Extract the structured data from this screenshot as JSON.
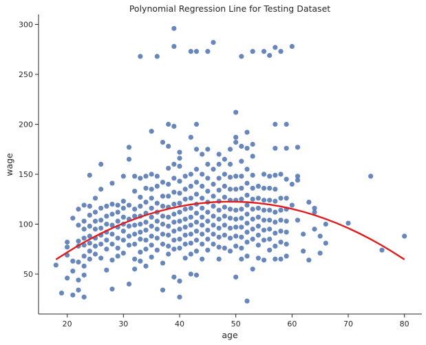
{
  "chart_data": {
    "type": "scatter",
    "title": "Polynomial Regression Line for Testing Dataset",
    "xlabel": "age",
    "ylabel": "wage",
    "xlim": [
      14.9,
      83.1
    ],
    "ylim": [
      10,
      310
    ],
    "xticks": [
      20,
      30,
      40,
      50,
      60,
      70,
      80
    ],
    "yticks": [
      50,
      100,
      150,
      200,
      250,
      300
    ],
    "grid": false,
    "point_color": "#4c72b0",
    "line_color": "#e31a1c",
    "points": [
      [
        18,
        59
      ],
      [
        19,
        31
      ],
      [
        20,
        77
      ],
      [
        20,
        82
      ],
      [
        20,
        69
      ],
      [
        20,
        46
      ],
      [
        21,
        106
      ],
      [
        21,
        63
      ],
      [
        21,
        53
      ],
      [
        21,
        29
      ],
      [
        22,
        115
      ],
      [
        22,
        99
      ],
      [
        22,
        83
      ],
      [
        22,
        78
      ],
      [
        22,
        62
      ],
      [
        22,
        44
      ],
      [
        22,
        34
      ],
      [
        23,
        119
      ],
      [
        23,
        103
      ],
      [
        23,
        95
      ],
      [
        23,
        86
      ],
      [
        23,
        79
      ],
      [
        23,
        68
      ],
      [
        23,
        58
      ],
      [
        23,
        49
      ],
      [
        23,
        27
      ],
      [
        24,
        149
      ],
      [
        24,
        118
      ],
      [
        24,
        109
      ],
      [
        24,
        98
      ],
      [
        24,
        88
      ],
      [
        24,
        81
      ],
      [
        24,
        73
      ],
      [
        24,
        65
      ],
      [
        25,
        126
      ],
      [
        25,
        112
      ],
      [
        25,
        103
      ],
      [
        25,
        95
      ],
      [
        25,
        86
      ],
      [
        25,
        78
      ],
      [
        25,
        70
      ],
      [
        26,
        160
      ],
      [
        26,
        135
      ],
      [
        26,
        116
      ],
      [
        26,
        104
      ],
      [
        26,
        96
      ],
      [
        26,
        89
      ],
      [
        26,
        80
      ],
      [
        26,
        66
      ],
      [
        27,
        118
      ],
      [
        27,
        108
      ],
      [
        27,
        100
      ],
      [
        27,
        92
      ],
      [
        27,
        84
      ],
      [
        27,
        75
      ],
      [
        27,
        54
      ],
      [
        28,
        141
      ],
      [
        28,
        120
      ],
      [
        28,
        110
      ],
      [
        28,
        99
      ],
      [
        28,
        90
      ],
      [
        28,
        80
      ],
      [
        28,
        64
      ],
      [
        28,
        35
      ],
      [
        29,
        119
      ],
      [
        29,
        112
      ],
      [
        29,
        103
      ],
      [
        29,
        97
      ],
      [
        29,
        86
      ],
      [
        29,
        76
      ],
      [
        29,
        68
      ],
      [
        30,
        148
      ],
      [
        30,
        123
      ],
      [
        30,
        116
      ],
      [
        30,
        107
      ],
      [
        30,
        100
      ],
      [
        30,
        93
      ],
      [
        30,
        84
      ],
      [
        30,
        71
      ],
      [
        31,
        177
      ],
      [
        31,
        165
      ],
      [
        31,
        119
      ],
      [
        31,
        105
      ],
      [
        31,
        98
      ],
      [
        31,
        88
      ],
      [
        31,
        79
      ],
      [
        31,
        40
      ],
      [
        32,
        148
      ],
      [
        32,
        133
      ],
      [
        32,
        115
      ],
      [
        32,
        108
      ],
      [
        32,
        99
      ],
      [
        32,
        90
      ],
      [
        32,
        80
      ],
      [
        32,
        65
      ],
      [
        32,
        55
      ],
      [
        33,
        268
      ],
      [
        33,
        146
      ],
      [
        33,
        127
      ],
      [
        33,
        118
      ],
      [
        33,
        108
      ],
      [
        33,
        100
      ],
      [
        33,
        92
      ],
      [
        33,
        85
      ],
      [
        33,
        72
      ],
      [
        33,
        63
      ],
      [
        34,
        148
      ],
      [
        34,
        136
      ],
      [
        34,
        122
      ],
      [
        34,
        111
      ],
      [
        34,
        102
      ],
      [
        34,
        94
      ],
      [
        34,
        84
      ],
      [
        34,
        75
      ],
      [
        34,
        58
      ],
      [
        35,
        193
      ],
      [
        35,
        150
      ],
      [
        35,
        135
      ],
      [
        35,
        126
      ],
      [
        35,
        116
      ],
      [
        35,
        107
      ],
      [
        35,
        98
      ],
      [
        35,
        88
      ],
      [
        35,
        79
      ],
      [
        35,
        67
      ],
      [
        36,
        268
      ],
      [
        36,
        148
      ],
      [
        36,
        138
      ],
      [
        36,
        121
      ],
      [
        36,
        112
      ],
      [
        36,
        103
      ],
      [
        36,
        95
      ],
      [
        36,
        86
      ],
      [
        36,
        74
      ],
      [
        37,
        182
      ],
      [
        37,
        142
      ],
      [
        37,
        128
      ],
      [
        37,
        118
      ],
      [
        37,
        108
      ],
      [
        37,
        100
      ],
      [
        37,
        90
      ],
      [
        37,
        80
      ],
      [
        37,
        61
      ],
      [
        37,
        34
      ],
      [
        38,
        200
      ],
      [
        38,
        178
      ],
      [
        38,
        156
      ],
      [
        38,
        140
      ],
      [
        38,
        128
      ],
      [
        38,
        117
      ],
      [
        38,
        107
      ],
      [
        38,
        98
      ],
      [
        38,
        89
      ],
      [
        38,
        78
      ],
      [
        38,
        70
      ],
      [
        39,
        296
      ],
      [
        39,
        278
      ],
      [
        39,
        198
      ],
      [
        39,
        160
      ],
      [
        39,
        146
      ],
      [
        39,
        132
      ],
      [
        39,
        120
      ],
      [
        39,
        110
      ],
      [
        39,
        102
      ],
      [
        39,
        93
      ],
      [
        39,
        84
      ],
      [
        39,
        75
      ],
      [
        39,
        47
      ],
      [
        40,
        172
      ],
      [
        40,
        166
      ],
      [
        40,
        158
      ],
      [
        40,
        143
      ],
      [
        40,
        131
      ],
      [
        40,
        121
      ],
      [
        40,
        112
      ],
      [
        40,
        103
      ],
      [
        40,
        95
      ],
      [
        40,
        85
      ],
      [
        40,
        76
      ],
      [
        40,
        43
      ],
      [
        40,
        27
      ],
      [
        41,
        148
      ],
      [
        41,
        135
      ],
      [
        41,
        125
      ],
      [
        41,
        115
      ],
      [
        41,
        105
      ],
      [
        41,
        97
      ],
      [
        41,
        89
      ],
      [
        41,
        80
      ],
      [
        41,
        66
      ],
      [
        42,
        273
      ],
      [
        42,
        187
      ],
      [
        42,
        150
      ],
      [
        42,
        138
      ],
      [
        42,
        126
      ],
      [
        42,
        116
      ],
      [
        42,
        107
      ],
      [
        42,
        99
      ],
      [
        42,
        90
      ],
      [
        42,
        81
      ],
      [
        42,
        70
      ],
      [
        42,
        50
      ],
      [
        43,
        273
      ],
      [
        43,
        200
      ],
      [
        43,
        175
      ],
      [
        43,
        155
      ],
      [
        43,
        142
      ],
      [
        43,
        130
      ],
      [
        43,
        120
      ],
      [
        43,
        111
      ],
      [
        43,
        102
      ],
      [
        43,
        93
      ],
      [
        43,
        84
      ],
      [
        43,
        73
      ],
      [
        43,
        49
      ],
      [
        44,
        170
      ],
      [
        44,
        150
      ],
      [
        44,
        138
      ],
      [
        44,
        126
      ],
      [
        44,
        116
      ],
      [
        44,
        107
      ],
      [
        44,
        99
      ],
      [
        44,
        90
      ],
      [
        44,
        80
      ],
      [
        44,
        65
      ],
      [
        45,
        273
      ],
      [
        45,
        175
      ],
      [
        45,
        160
      ],
      [
        45,
        146
      ],
      [
        45,
        133
      ],
      [
        45,
        122
      ],
      [
        45,
        112
      ],
      [
        45,
        103
      ],
      [
        45,
        94
      ],
      [
        45,
        85
      ],
      [
        45,
        74
      ],
      [
        46,
        282
      ],
      [
        46,
        155
      ],
      [
        46,
        140
      ],
      [
        46,
        128
      ],
      [
        46,
        118
      ],
      [
        46,
        108
      ],
      [
        46,
        99
      ],
      [
        46,
        90
      ],
      [
        46,
        80
      ],
      [
        47,
        170
      ],
      [
        47,
        160
      ],
      [
        47,
        146
      ],
      [
        47,
        134
      ],
      [
        47,
        123
      ],
      [
        47,
        114
      ],
      [
        47,
        105
      ],
      [
        47,
        96
      ],
      [
        47,
        87
      ],
      [
        47,
        77
      ],
      [
        47,
        65
      ],
      [
        48,
        165
      ],
      [
        48,
        150
      ],
      [
        48,
        138
      ],
      [
        48,
        127
      ],
      [
        48,
        117
      ],
      [
        48,
        108
      ],
      [
        48,
        99
      ],
      [
        48,
        89
      ],
      [
        48,
        76
      ],
      [
        49,
        175
      ],
      [
        49,
        160
      ],
      [
        49,
        147
      ],
      [
        49,
        135
      ],
      [
        49,
        124
      ],
      [
        49,
        115
      ],
      [
        49,
        106
      ],
      [
        49,
        96
      ],
      [
        49,
        86
      ],
      [
        49,
        73
      ],
      [
        50,
        212
      ],
      [
        50,
        187
      ],
      [
        50,
        182
      ],
      [
        50,
        148
      ],
      [
        50,
        135
      ],
      [
        50,
        124
      ],
      [
        50,
        114
      ],
      [
        50,
        105
      ],
      [
        50,
        97
      ],
      [
        50,
        88
      ],
      [
        50,
        78
      ],
      [
        50,
        47
      ],
      [
        51,
        268
      ],
      [
        51,
        178
      ],
      [
        51,
        163
      ],
      [
        51,
        148
      ],
      [
        51,
        136
      ],
      [
        51,
        125
      ],
      [
        51,
        115
      ],
      [
        51,
        106
      ],
      [
        51,
        97
      ],
      [
        51,
        87
      ],
      [
        51,
        76
      ],
      [
        51,
        65
      ],
      [
        52,
        192
      ],
      [
        52,
        176
      ],
      [
        52,
        155
      ],
      [
        52,
        141
      ],
      [
        52,
        129
      ],
      [
        52,
        119
      ],
      [
        52,
        110
      ],
      [
        52,
        101
      ],
      [
        52,
        92
      ],
      [
        52,
        82
      ],
      [
        52,
        68
      ],
      [
        52,
        23
      ],
      [
        53,
        273
      ],
      [
        53,
        180
      ],
      [
        53,
        168
      ],
      [
        53,
        149
      ],
      [
        53,
        136
      ],
      [
        53,
        125
      ],
      [
        53,
        115
      ],
      [
        53,
        105
      ],
      [
        53,
        95
      ],
      [
        53,
        85
      ],
      [
        53,
        55
      ],
      [
        54,
        138
      ],
      [
        54,
        126
      ],
      [
        54,
        116
      ],
      [
        54,
        107
      ],
      [
        54,
        98
      ],
      [
        54,
        89
      ],
      [
        54,
        79
      ],
      [
        54,
        66
      ],
      [
        55,
        273
      ],
      [
        55,
        150
      ],
      [
        55,
        136
      ],
      [
        55,
        124
      ],
      [
        55,
        114
      ],
      [
        55,
        104
      ],
      [
        55,
        94
      ],
      [
        55,
        84
      ],
      [
        55,
        64
      ],
      [
        56,
        269
      ],
      [
        56,
        148
      ],
      [
        56,
        136
      ],
      [
        56,
        124
      ],
      [
        56,
        114
      ],
      [
        56,
        104
      ],
      [
        56,
        95
      ],
      [
        56,
        85
      ],
      [
        56,
        74
      ],
      [
        57,
        277
      ],
      [
        57,
        200
      ],
      [
        57,
        176
      ],
      [
        57,
        149
      ],
      [
        57,
        135
      ],
      [
        57,
        123
      ],
      [
        57,
        112
      ],
      [
        57,
        102
      ],
      [
        57,
        91
      ],
      [
        57,
        78
      ],
      [
        57,
        65
      ],
      [
        58,
        273
      ],
      [
        58,
        150
      ],
      [
        58,
        126
      ],
      [
        58,
        114
      ],
      [
        58,
        104
      ],
      [
        58,
        93
      ],
      [
        58,
        82
      ],
      [
        58,
        65
      ],
      [
        59,
        200
      ],
      [
        59,
        176
      ],
      [
        59,
        145
      ],
      [
        59,
        126
      ],
      [
        59,
        115
      ],
      [
        59,
        103
      ],
      [
        59,
        92
      ],
      [
        59,
        80
      ],
      [
        59,
        68
      ],
      [
        60,
        278
      ],
      [
        60,
        140
      ],
      [
        60,
        119
      ],
      [
        61,
        177
      ],
      [
        61,
        148
      ],
      [
        61,
        144
      ],
      [
        61,
        104
      ],
      [
        62,
        90
      ],
      [
        62,
        73
      ],
      [
        63,
        122
      ],
      [
        63,
        64
      ],
      [
        64,
        116
      ],
      [
        64,
        112
      ],
      [
        64,
        95
      ],
      [
        65,
        88
      ],
      [
        65,
        71
      ],
      [
        66,
        100
      ],
      [
        66,
        81
      ],
      [
        70,
        101
      ],
      [
        74,
        148
      ],
      [
        76,
        74
      ],
      [
        80,
        88
      ]
    ],
    "fit_curve": [
      [
        18,
        64.6
      ],
      [
        20,
        71.8
      ],
      [
        22,
        78.6
      ],
      [
        24,
        84.9
      ],
      [
        26,
        90.7
      ],
      [
        28,
        96.0
      ],
      [
        30,
        100.8
      ],
      [
        32,
        105.2
      ],
      [
        34,
        109.0
      ],
      [
        36,
        112.4
      ],
      [
        38,
        115.3
      ],
      [
        40,
        117.7
      ],
      [
        42,
        119.7
      ],
      [
        44,
        121.1
      ],
      [
        46,
        122.1
      ],
      [
        48,
        122.5
      ],
      [
        50,
        122.5
      ],
      [
        52,
        122.1
      ],
      [
        54,
        121.1
      ],
      [
        56,
        119.6
      ],
      [
        58,
        117.7
      ],
      [
        60,
        115.3
      ],
      [
        62,
        112.4
      ],
      [
        64,
        109.0
      ],
      [
        66,
        105.2
      ],
      [
        68,
        100.8
      ],
      [
        70,
        96.0
      ],
      [
        72,
        90.7
      ],
      [
        74,
        84.9
      ],
      [
        76,
        78.6
      ],
      [
        78,
        71.8
      ],
      [
        80,
        64.6
      ]
    ]
  }
}
